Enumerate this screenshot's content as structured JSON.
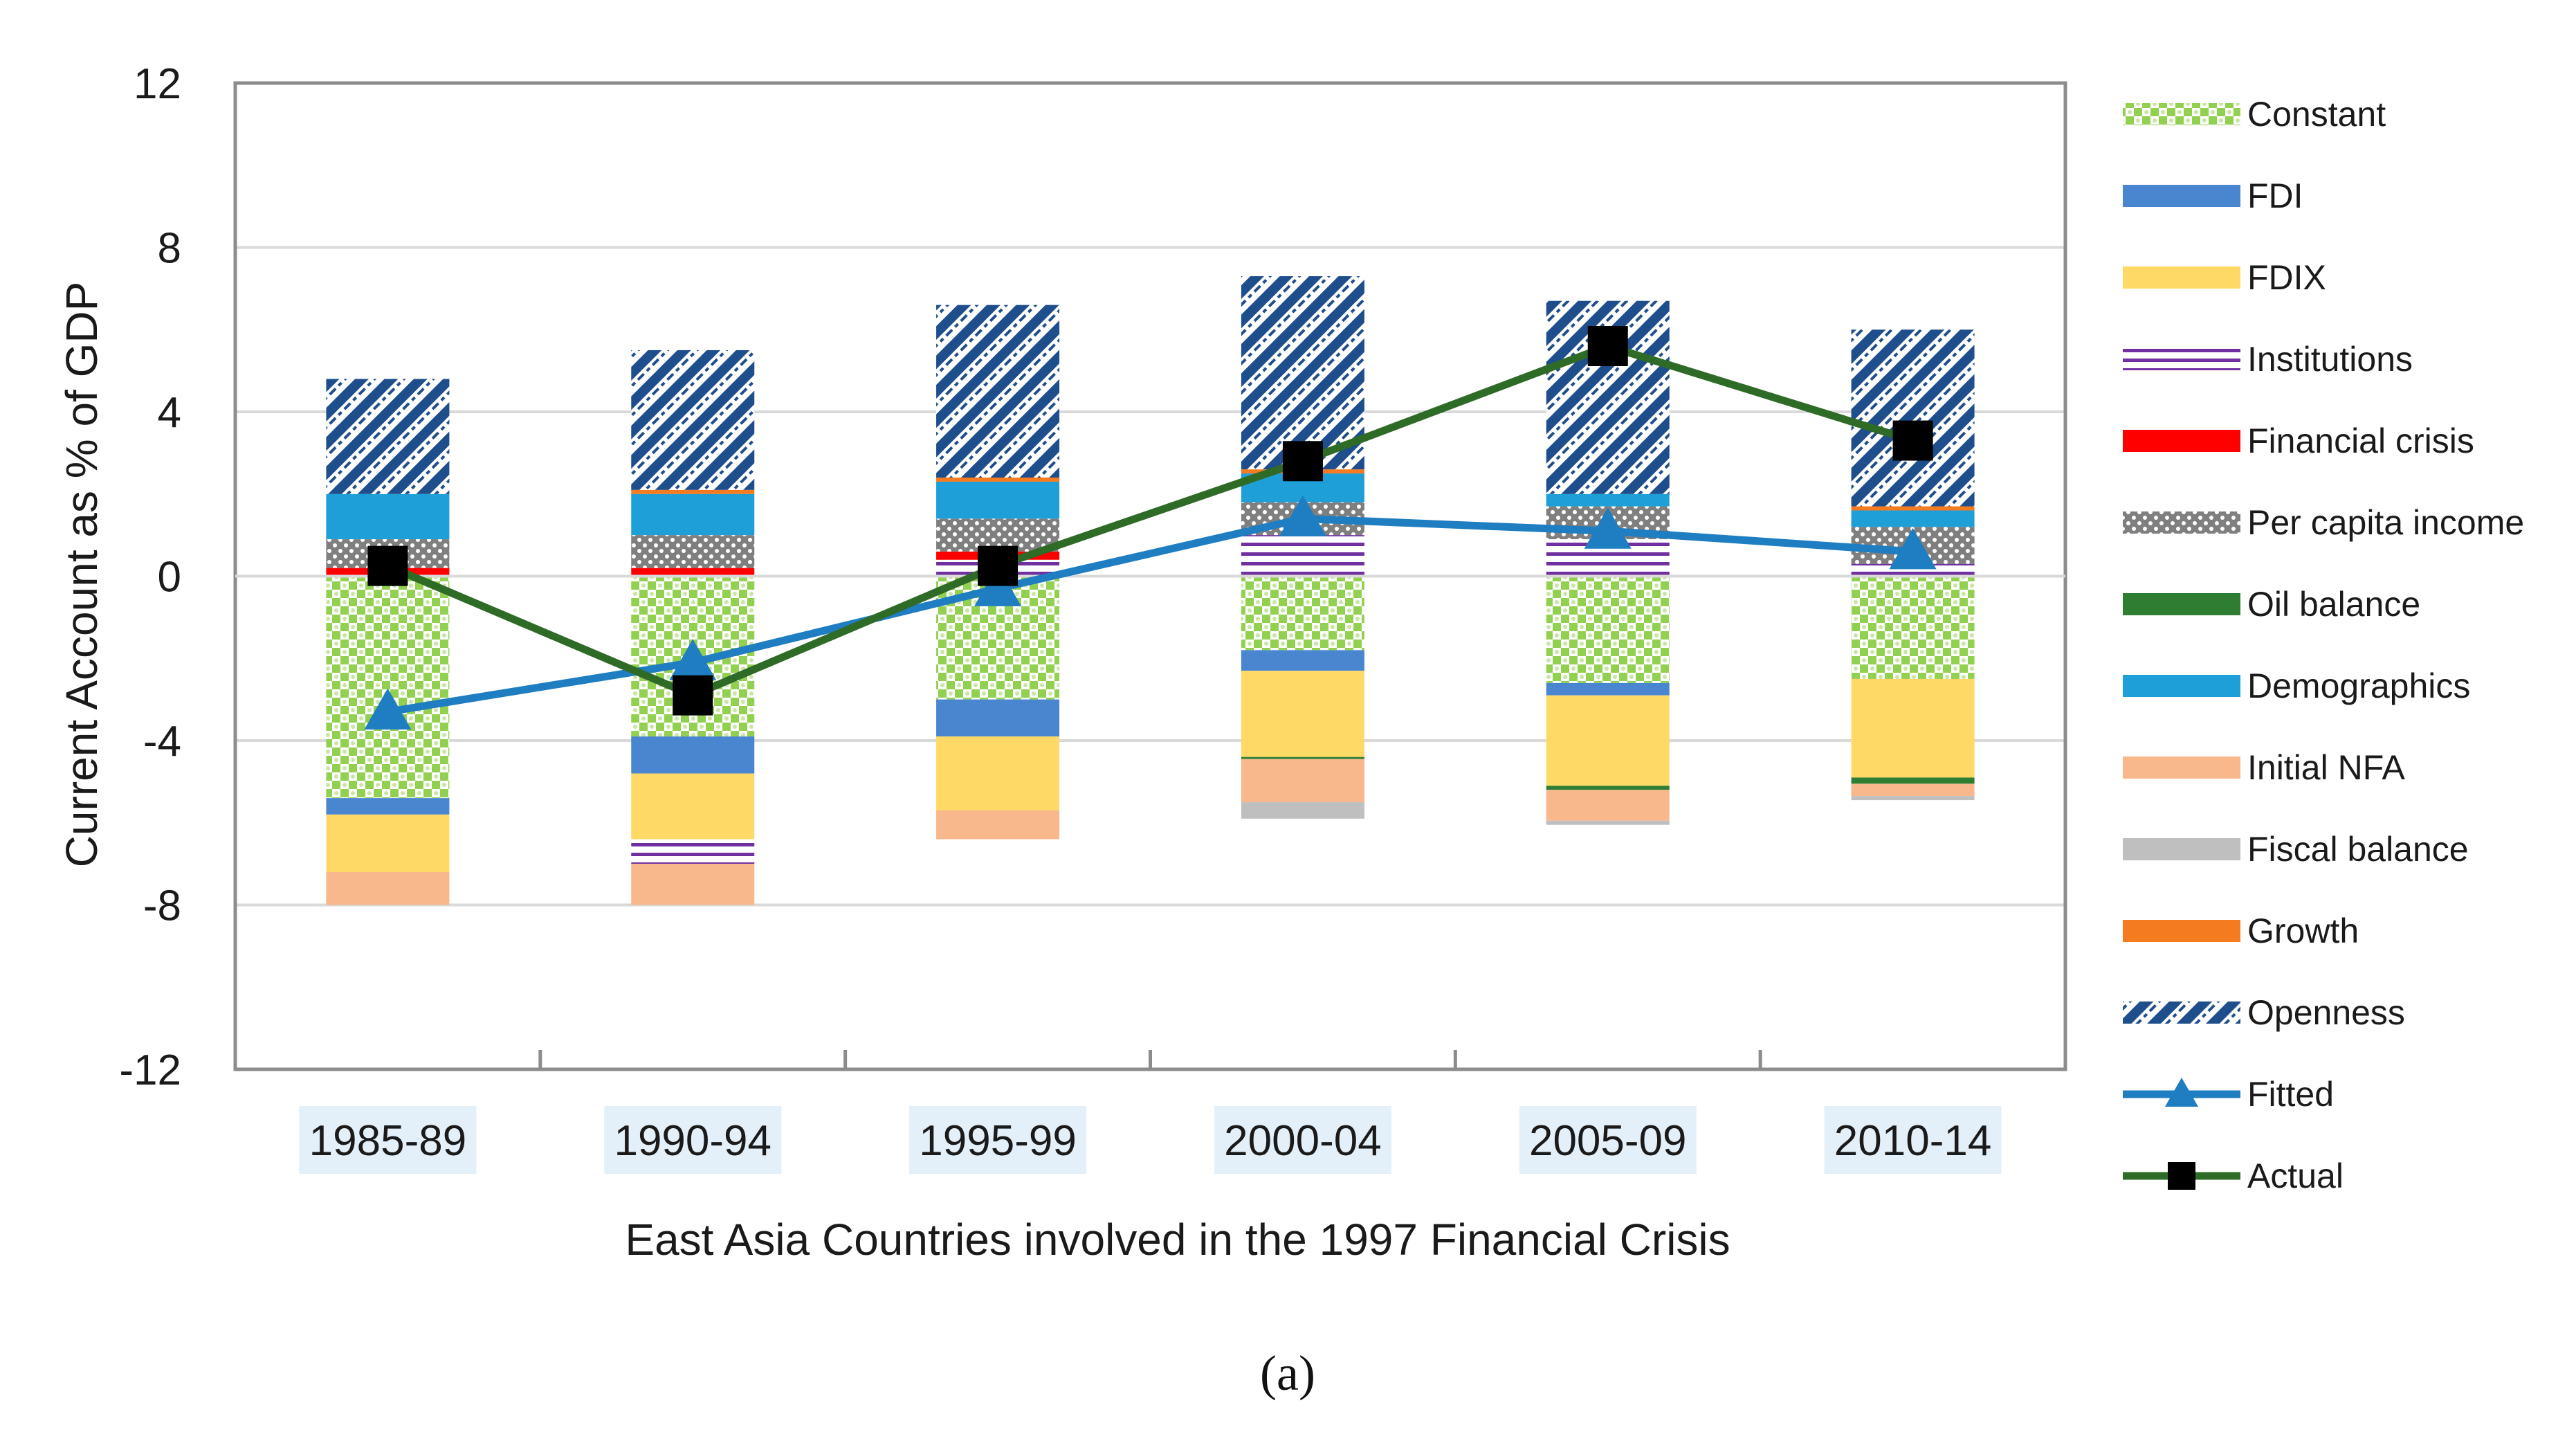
{
  "chart_data": {
    "type": "bar",
    "stacked": true,
    "title": "",
    "xlabel": "East Asia Countries involved in the 1997 Financial Crisis",
    "ylabel": "Current Account as % of GDP",
    "ylim": [
      -12,
      12
    ],
    "yticks": [
      12,
      8,
      4,
      0,
      -4,
      -8,
      -12
    ],
    "ytick_labels": [
      "12",
      "8",
      "4",
      "0",
      "-4",
      "-8",
      "-12"
    ],
    "grid": true,
    "legend_position": "right",
    "panel_label": "(a)",
    "categories": [
      "1985-89",
      "1990-94",
      "1995-99",
      "2000-04",
      "2005-09",
      "2010-14"
    ],
    "series": [
      {
        "name": "Constant",
        "color": "#92D050",
        "pattern": "checker",
        "values": [
          -5.4,
          -3.9,
          -3.0,
          -1.8,
          -2.6,
          -2.5
        ]
      },
      {
        "name": "FDI",
        "color": "#4A86CF",
        "pattern": "solid",
        "values": [
          -0.4,
          -0.9,
          -0.9,
          -0.5,
          -0.3,
          0.0
        ]
      },
      {
        "name": "FDIX",
        "color": "#FFD966",
        "pattern": "solid",
        "values": [
          -1.4,
          -1.6,
          -1.8,
          -2.1,
          -2.2,
          -2.4
        ]
      },
      {
        "name": "Institutions",
        "color": "#7030A0",
        "pattern": "hlines",
        "values": [
          0.0,
          -0.6,
          0.4,
          1.0,
          0.9,
          0.3
        ]
      },
      {
        "name": "Financial crisis",
        "color": "#FF0000",
        "pattern": "solid",
        "values": [
          0.2,
          0.2,
          0.2,
          0.0,
          0.0,
          0.0
        ]
      },
      {
        "name": "Per capita income",
        "color": "#808080",
        "pattern": "dots",
        "values": [
          0.7,
          0.8,
          0.8,
          0.8,
          0.8,
          0.9
        ]
      },
      {
        "name": "Oil balance",
        "color": "#2E7D32",
        "pattern": "solid",
        "values": [
          0.0,
          0.0,
          0.0,
          -0.05,
          -0.1,
          -0.15
        ]
      },
      {
        "name": "Demographics",
        "color": "#1E9FD8",
        "pattern": "solid",
        "values": [
          1.1,
          1.0,
          0.9,
          0.7,
          0.3,
          0.4
        ]
      },
      {
        "name": "Initial NFA",
        "color": "#F8B88B",
        "pattern": "solid",
        "values": [
          -0.8,
          -1.0,
          -0.7,
          -1.05,
          -0.75,
          -0.3
        ]
      },
      {
        "name": "Fiscal balance",
        "color": "#BFBFBF",
        "pattern": "solid",
        "values": [
          0.0,
          0.0,
          0.0,
          -0.4,
          -0.1,
          -0.1
        ]
      },
      {
        "name": "Growth",
        "color": "#F47B20",
        "pattern": "solid",
        "values": [
          0.0,
          0.1,
          0.1,
          0.1,
          0.0,
          0.1
        ]
      },
      {
        "name": "Openness",
        "color": "#1F4E8C",
        "pattern": "diag",
        "values": [
          2.8,
          3.4,
          4.2,
          4.7,
          4.7,
          4.3
        ]
      }
    ],
    "lines": [
      {
        "name": "Fitted",
        "color": "#1F7DC1",
        "marker": "triangle",
        "values": [
          -3.3,
          -2.1,
          -0.3,
          1.4,
          1.1,
          0.6
        ]
      },
      {
        "name": "Actual",
        "color": "#2E6B26",
        "marker": "square",
        "values": [
          0.25,
          -2.9,
          0.25,
          2.8,
          5.6,
          3.3
        ]
      }
    ]
  }
}
